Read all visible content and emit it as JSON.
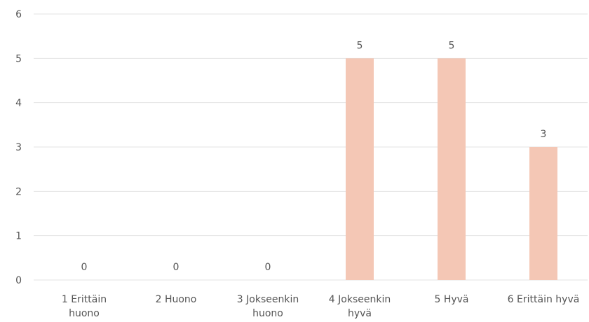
{
  "chart_data": {
    "type": "bar",
    "categories": [
      [
        "1 Erittäin",
        "huono"
      ],
      [
        "2 Huono"
      ],
      [
        "3 Jokseenkin",
        "huono"
      ],
      [
        "4 Jokseenkin",
        "hyvä"
      ],
      [
        "5 Hyvä"
      ],
      [
        "6 Erittäin hyvä"
      ]
    ],
    "values": [
      0,
      0,
      0,
      5,
      5,
      3
    ],
    "ylim": [
      0,
      6
    ],
    "yticks": [
      0,
      1,
      2,
      3,
      4,
      5,
      6
    ],
    "grid": true,
    "bar_color": "#f4c7b5",
    "grid_color": "#e3e3e3",
    "text_color": "#555555"
  }
}
